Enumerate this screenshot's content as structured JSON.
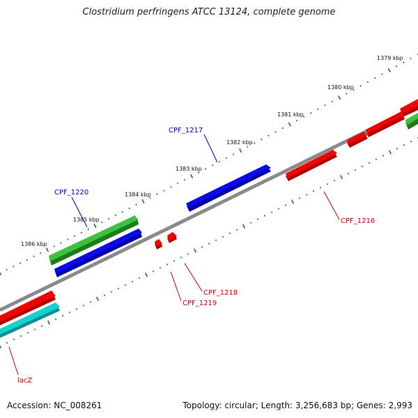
{
  "title": "Clostridium perfringens ATCC 13124, complete genome",
  "footer": {
    "accession": "Accession: NC_008261",
    "info": "Topology: circular; Length: 3,256,683 bp; Genes: 2,993"
  },
  "colors": {
    "backbone": "#808080",
    "tick": "#1a7a1a",
    "gene_red": "#e80000",
    "gene_blue": "#0000e6",
    "gene_green": "#33b533",
    "gene_cyan": "#10c8c8",
    "label_red": "#cc0000",
    "label_blue": "#0000cc"
  },
  "kbp_labels": [
    "1379 kbp",
    "1380 kbp",
    "1381 kbp",
    "1382 kbp",
    "1383 kbp",
    "1384 kbp",
    "1385 kbp",
    "1386 kbp"
  ],
  "gene_labels": {
    "cpf1217": "CPF_1217",
    "cpf1220": "CPF_1220",
    "cpf1216": "CPF_1216",
    "cpf1218": "CPF_1218",
    "cpf1219": "CPF_1219",
    "lacz": "lacZ"
  }
}
